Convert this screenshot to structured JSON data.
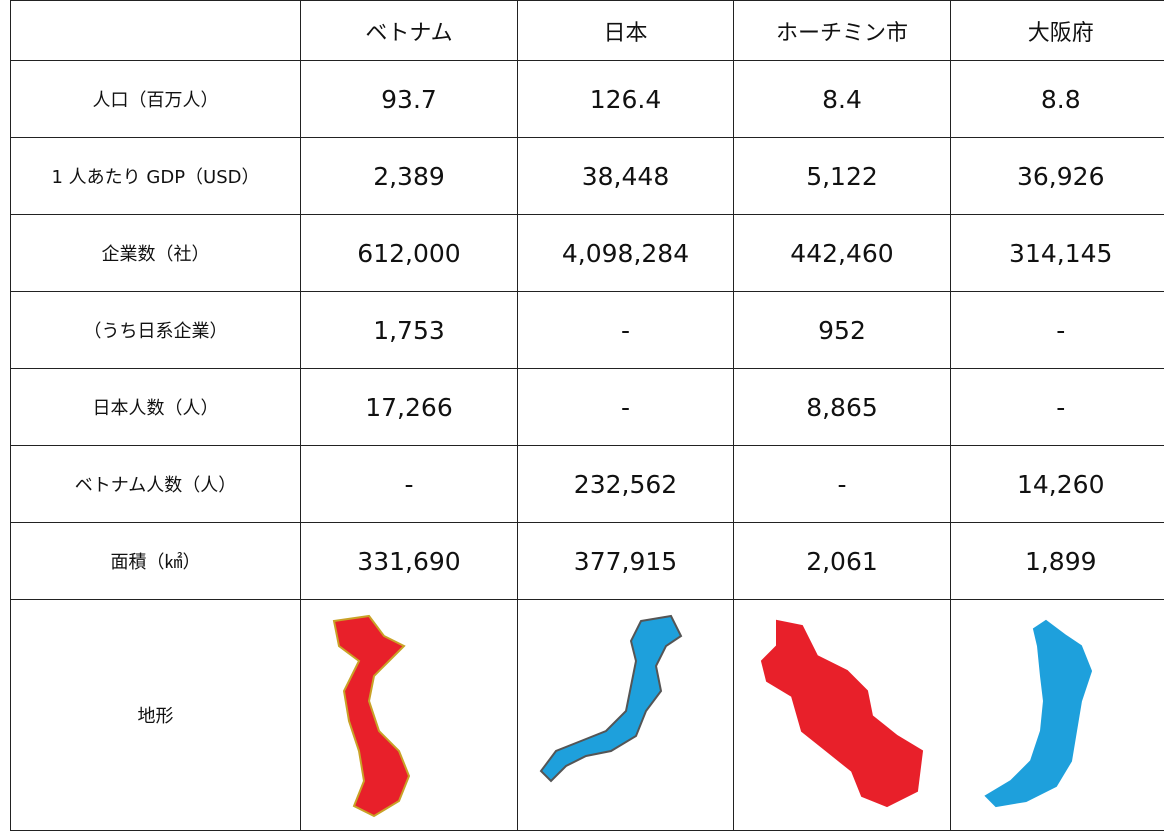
{
  "table": {
    "columns": [
      "ベトナム",
      "日本",
      "ホーチミン市",
      "大阪府"
    ],
    "rows": [
      {
        "label": "人口（百万人）",
        "values": [
          "93.7",
          "126.4",
          "8.4",
          "8.8"
        ]
      },
      {
        "label": "1 人あたり GDP（USD）",
        "values": [
          "2,389",
          "38,448",
          "5,122",
          "36,926"
        ]
      },
      {
        "label": "企業数（社）",
        "values": [
          "612,000",
          "4,098,284",
          "442,460",
          "314,145"
        ]
      },
      {
        "label": "（うち日系企業）",
        "values": [
          "1,753",
          "-",
          "952",
          "-"
        ]
      },
      {
        "label": "日本人数（人）",
        "values": [
          "17,266",
          "-",
          "8,865",
          "-"
        ]
      },
      {
        "label": "ベトナム人数（人）",
        "values": [
          "-",
          "232,562",
          "-",
          "14,260"
        ]
      },
      {
        "label": "面積（㎢）",
        "values": [
          "331,690",
          "377,915",
          "2,061",
          "1,899"
        ]
      }
    ],
    "terrain_label": "地形"
  }
}
